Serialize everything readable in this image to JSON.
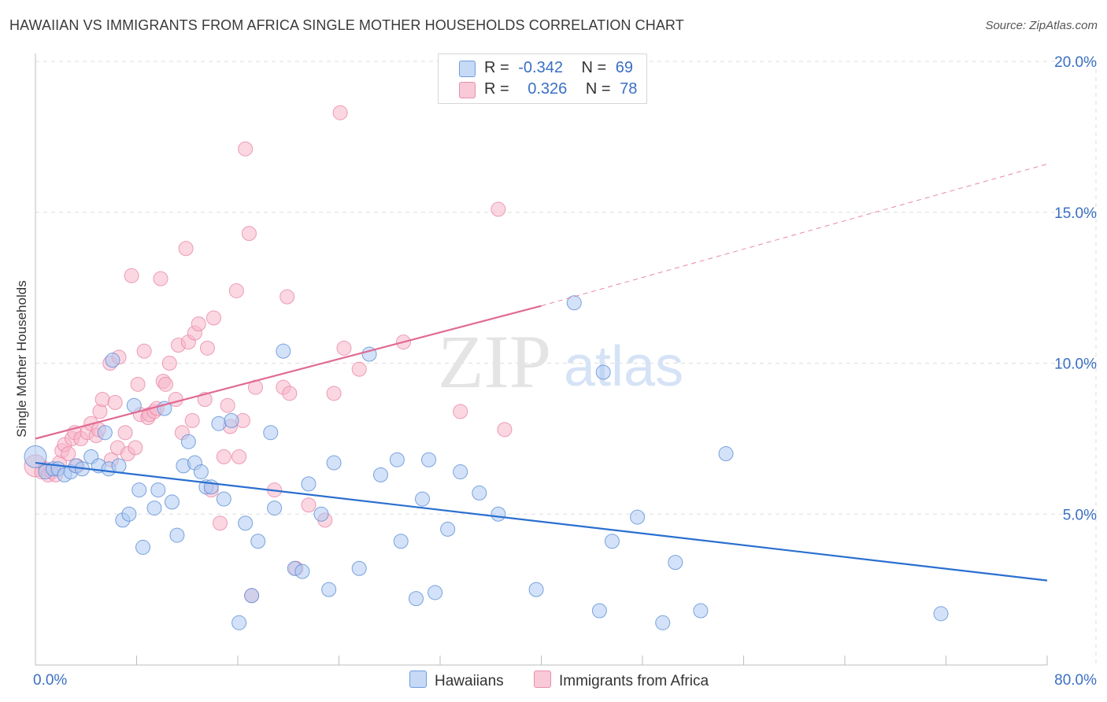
{
  "title": "HAWAIIAN VS IMMIGRANTS FROM AFRICA SINGLE MOTHER HOUSEHOLDS CORRELATION CHART",
  "source": "Source: ZipAtlas.com",
  "watermark": "ZIPatlas",
  "colors": {
    "blue_fill": "#aecbf2",
    "blue_stroke": "#5b8fd6",
    "blue_line": "#2a6fd0",
    "pink_fill": "#f7b7cb",
    "pink_stroke": "#e887a6",
    "pink_line": "#e06a92",
    "axis_text": "#3a6fc4",
    "grid": "#dedede"
  },
  "legend": {
    "rows": [
      {
        "r_label": "R =",
        "r_value": "-0.342",
        "n_label": "N =",
        "n_value": "69"
      },
      {
        "r_label": "R =",
        "r_value": "0.326",
        "n_label": "N =",
        "n_value": "78"
      }
    ]
  },
  "bottom_legend": {
    "series1": "Hawaiians",
    "series2": "Immigrants from Africa"
  },
  "chart_data": {
    "type": "scatter",
    "title": "HAWAIIAN VS IMMIGRANTS FROM AFRICA SINGLE MOTHER HOUSEHOLDS CORRELATION CHART",
    "xlabel": "",
    "ylabel": "Single Mother Households",
    "xlim": [
      0,
      80
    ],
    "ylim": [
      0,
      20
    ],
    "x_tick_labels": [
      "0.0%",
      "80.0%"
    ],
    "y_ticks": [
      5,
      10,
      15,
      20
    ],
    "y_tick_labels": [
      "5.0%",
      "10.0%",
      "15.0%",
      "20.0%"
    ],
    "grid": true,
    "legend_position": "top-center",
    "series": [
      {
        "name": "Hawaiians",
        "color": "#aecbf2",
        "trend": {
          "x": [
            0,
            80
          ],
          "y": [
            6.7,
            2.8
          ],
          "extrapolated_to": 80
        },
        "points": [
          [
            0,
            6.9
          ],
          [
            0.8,
            6.4
          ],
          [
            1.4,
            6.5
          ],
          [
            1.8,
            6.5
          ],
          [
            2.3,
            6.3
          ],
          [
            2.8,
            6.4
          ],
          [
            3.2,
            6.6
          ],
          [
            3.7,
            6.5
          ],
          [
            4.4,
            6.9
          ],
          [
            5,
            6.6
          ],
          [
            5.5,
            7.7
          ],
          [
            5.8,
            6.5
          ],
          [
            6.1,
            10.1
          ],
          [
            6.6,
            6.6
          ],
          [
            6.9,
            4.8
          ],
          [
            7.4,
            5.0
          ],
          [
            7.8,
            8.6
          ],
          [
            8.2,
            5.8
          ],
          [
            8.5,
            3.9
          ],
          [
            9.4,
            5.2
          ],
          [
            9.7,
            5.8
          ],
          [
            10.2,
            8.5
          ],
          [
            10.8,
            5.4
          ],
          [
            11.2,
            4.3
          ],
          [
            11.7,
            6.6
          ],
          [
            12.1,
            7.4
          ],
          [
            12.6,
            6.7
          ],
          [
            13.1,
            6.4
          ],
          [
            13.5,
            5.9
          ],
          [
            13.9,
            5.9
          ],
          [
            14.5,
            8.0
          ],
          [
            14.9,
            5.5
          ],
          [
            15.5,
            8.1
          ],
          [
            16.1,
            1.4
          ],
          [
            16.6,
            4.7
          ],
          [
            17.1,
            2.3
          ],
          [
            17.6,
            4.1
          ],
          [
            18.6,
            7.7
          ],
          [
            18.9,
            5.2
          ],
          [
            19.6,
            10.4
          ],
          [
            20.5,
            3.2
          ],
          [
            21.1,
            3.1
          ],
          [
            21.6,
            6.0
          ],
          [
            22.6,
            5.0
          ],
          [
            23.2,
            2.5
          ],
          [
            23.6,
            6.7
          ],
          [
            25.6,
            3.2
          ],
          [
            26.4,
            10.3
          ],
          [
            27.3,
            6.3
          ],
          [
            28.6,
            6.8
          ],
          [
            28.9,
            4.1
          ],
          [
            30.1,
            2.2
          ],
          [
            30.6,
            5.5
          ],
          [
            31.1,
            6.8
          ],
          [
            31.6,
            2.4
          ],
          [
            32.6,
            4.5
          ],
          [
            33.6,
            6.4
          ],
          [
            35.1,
            5.7
          ],
          [
            36.6,
            5.0
          ],
          [
            39.6,
            2.5
          ],
          [
            42.6,
            12.0
          ],
          [
            44.6,
            1.8
          ],
          [
            44.9,
            9.7
          ],
          [
            45.6,
            4.1
          ],
          [
            47.6,
            4.9
          ],
          [
            49.6,
            1.4
          ],
          [
            50.6,
            3.4
          ],
          [
            52.6,
            1.8
          ],
          [
            54.6,
            7.0
          ],
          [
            71.6,
            1.7
          ]
        ]
      },
      {
        "name": "Immigrants from Africa",
        "color": "#f7b7cb",
        "trend": {
          "x": [
            0,
            40
          ],
          "y": [
            7.5,
            11.9
          ],
          "extrapolated_to": 80,
          "extrapolated_y": 16.6
        },
        "points": [
          [
            0,
            6.6
          ],
          [
            0.5,
            6.4
          ],
          [
            0.8,
            6.5
          ],
          [
            1,
            6.3
          ],
          [
            1.3,
            6.4
          ],
          [
            1.6,
            6.3
          ],
          [
            1.9,
            6.7
          ],
          [
            2.1,
            7.1
          ],
          [
            2.3,
            7.3
          ],
          [
            2.6,
            7.0
          ],
          [
            2.9,
            7.5
          ],
          [
            3.1,
            7.7
          ],
          [
            3.3,
            6.6
          ],
          [
            3.6,
            7.5
          ],
          [
            4.1,
            7.7
          ],
          [
            4.4,
            8.0
          ],
          [
            4.8,
            7.6
          ],
          [
            5.0,
            7.8
          ],
          [
            5.1,
            8.4
          ],
          [
            5.3,
            8.8
          ],
          [
            5.9,
            10.0
          ],
          [
            6.0,
            6.8
          ],
          [
            6.3,
            8.7
          ],
          [
            6.5,
            7.2
          ],
          [
            6.6,
            10.2
          ],
          [
            7.1,
            7.7
          ],
          [
            7.3,
            7.0
          ],
          [
            7.6,
            12.9
          ],
          [
            7.9,
            7.2
          ],
          [
            8.1,
            9.3
          ],
          [
            8.3,
            8.3
          ],
          [
            8.6,
            10.4
          ],
          [
            8.9,
            8.2
          ],
          [
            9.0,
            8.3
          ],
          [
            9.4,
            8.4
          ],
          [
            9.6,
            8.5
          ],
          [
            9.9,
            12.8
          ],
          [
            10.1,
            9.4
          ],
          [
            10.3,
            9.3
          ],
          [
            10.6,
            10.0
          ],
          [
            11.1,
            8.8
          ],
          [
            11.3,
            10.6
          ],
          [
            11.6,
            7.7
          ],
          [
            11.9,
            13.8
          ],
          [
            12.1,
            10.7
          ],
          [
            12.4,
            8.1
          ],
          [
            12.6,
            11.0
          ],
          [
            12.9,
            11.3
          ],
          [
            13.4,
            8.8
          ],
          [
            13.6,
            10.5
          ],
          [
            13.9,
            5.8
          ],
          [
            14.1,
            11.5
          ],
          [
            14.6,
            4.7
          ],
          [
            14.9,
            6.9
          ],
          [
            15.2,
            8.6
          ],
          [
            15.4,
            7.9
          ],
          [
            15.9,
            12.4
          ],
          [
            16.1,
            6.9
          ],
          [
            16.4,
            8.1
          ],
          [
            16.6,
            17.1
          ],
          [
            16.9,
            14.3
          ],
          [
            17.1,
            2.3
          ],
          [
            17.4,
            9.2
          ],
          [
            18.9,
            5.8
          ],
          [
            19.6,
            9.2
          ],
          [
            19.9,
            12.2
          ],
          [
            20.1,
            9.0
          ],
          [
            20.6,
            3.2
          ],
          [
            21.6,
            5.3
          ],
          [
            22.9,
            4.8
          ],
          [
            23.6,
            9.0
          ],
          [
            24.1,
            18.3
          ],
          [
            24.4,
            10.5
          ],
          [
            25.6,
            9.8
          ],
          [
            29.1,
            10.7
          ],
          [
            33.6,
            8.4
          ],
          [
            36.6,
            15.1
          ],
          [
            37.1,
            7.8
          ]
        ]
      }
    ]
  }
}
